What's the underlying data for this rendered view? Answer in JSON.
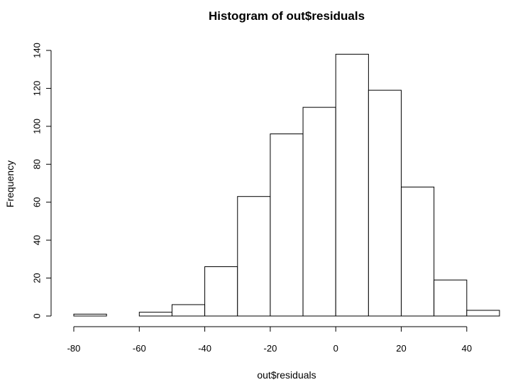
{
  "chart_data": {
    "type": "bar",
    "title": "Histogram of out$residuals",
    "xlabel": "out$residuals",
    "ylabel": "Frequency",
    "bin_edges": [
      -80,
      -70,
      -60,
      -50,
      -40,
      -30,
      -20,
      -10,
      0,
      10,
      20,
      30,
      40,
      50
    ],
    "values": [
      1,
      0,
      2,
      6,
      26,
      63,
      96,
      110,
      138,
      119,
      68,
      19,
      3
    ],
    "xlim": [
      -80,
      50
    ],
    "ylim": [
      0,
      140
    ],
    "x_ticks": [
      -80,
      -60,
      -40,
      -20,
      0,
      20,
      40
    ],
    "y_ticks": [
      0,
      20,
      40,
      60,
      80,
      100,
      120,
      140
    ],
    "grid": false,
    "legend": "none"
  }
}
